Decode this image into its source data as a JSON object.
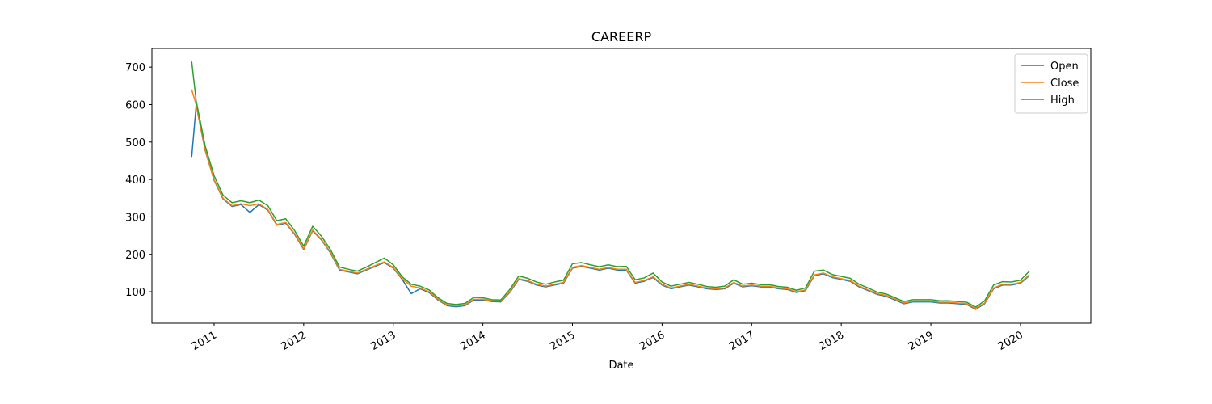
{
  "chart_data": {
    "type": "line",
    "title": "CAREERP",
    "xlabel": "Date",
    "x": [
      2010.75,
      2010.8,
      2010.9,
      2011.0,
      2011.1,
      2011.2,
      2011.3,
      2011.4,
      2011.5,
      2011.6,
      2011.7,
      2011.8,
      2011.9,
      2012.0,
      2012.1,
      2012.2,
      2012.3,
      2012.4,
      2012.5,
      2012.6,
      2012.7,
      2012.8,
      2012.9,
      2013.0,
      2013.1,
      2013.2,
      2013.3,
      2013.4,
      2013.5,
      2013.6,
      2013.7,
      2013.8,
      2013.9,
      2014.0,
      2014.1,
      2014.2,
      2014.3,
      2014.4,
      2014.5,
      2014.6,
      2014.7,
      2014.8,
      2014.9,
      2015.0,
      2015.1,
      2015.2,
      2015.3,
      2015.4,
      2015.5,
      2015.6,
      2015.7,
      2015.8,
      2015.9,
      2016.0,
      2016.1,
      2016.2,
      2016.3,
      2016.4,
      2016.5,
      2016.6,
      2016.7,
      2016.8,
      2016.9,
      2017.0,
      2017.1,
      2017.2,
      2017.3,
      2017.4,
      2017.5,
      2017.6,
      2017.7,
      2017.8,
      2017.9,
      2018.0,
      2018.1,
      2018.2,
      2018.3,
      2018.4,
      2018.5,
      2018.6,
      2018.7,
      2018.8,
      2018.9,
      2019.0,
      2019.1,
      2019.2,
      2019.3,
      2019.4,
      2019.5,
      2019.6,
      2019.7,
      2019.8,
      2019.9,
      2020.0,
      2020.1
    ],
    "series": [
      {
        "name": "Open",
        "color": "#1f77b4",
        "values": [
          460,
          598,
          478,
          398,
          348,
          328,
          333,
          312,
          333,
          318,
          278,
          283,
          253,
          213,
          263,
          238,
          203,
          158,
          153,
          148,
          158,
          168,
          178,
          163,
          133,
          95,
          108,
          98,
          78,
          63,
          60,
          63,
          78,
          78,
          74,
          73,
          98,
          133,
          128,
          118,
          113,
          118,
          123,
          163,
          168,
          163,
          158,
          163,
          158,
          158,
          123,
          128,
          138,
          118,
          108,
          113,
          118,
          113,
          108,
          106,
          108,
          123,
          113,
          116,
          113,
          113,
          108,
          106,
          98,
          103,
          143,
          148,
          138,
          133,
          128,
          113,
          103,
          93,
          88,
          78,
          68,
          73,
          73,
          73,
          70,
          70,
          68,
          66,
          53,
          68,
          108,
          118,
          118,
          123,
          143
        ]
      },
      {
        "name": "Close",
        "color": "#ff7f0e",
        "values": [
          640,
          600,
          480,
          400,
          350,
          330,
          335,
          330,
          335,
          320,
          280,
          285,
          255,
          215,
          265,
          240,
          205,
          160,
          155,
          150,
          160,
          170,
          180,
          165,
          135,
          115,
          110,
          100,
          80,
          65,
          62,
          65,
          80,
          80,
          76,
          75,
          100,
          135,
          130,
          120,
          115,
          120,
          125,
          165,
          170,
          165,
          160,
          165,
          160,
          160,
          125,
          130,
          140,
          120,
          110,
          115,
          120,
          115,
          110,
          108,
          110,
          125,
          115,
          118,
          115,
          115,
          110,
          108,
          100,
          105,
          145,
          150,
          140,
          135,
          130,
          115,
          105,
          95,
          90,
          80,
          70,
          75,
          75,
          75,
          72,
          72,
          70,
          68,
          55,
          70,
          110,
          120,
          120,
          125,
          145
        ]
      },
      {
        "name": "High",
        "color": "#2ca02c",
        "values": [
          715,
          610,
          490,
          410,
          358,
          338,
          343,
          338,
          345,
          330,
          290,
          295,
          263,
          222,
          275,
          248,
          212,
          166,
          160,
          155,
          166,
          178,
          190,
          172,
          140,
          120,
          115,
          105,
          84,
          69,
          66,
          69,
          85,
          84,
          79,
          78,
          106,
          142,
          136,
          126,
          120,
          126,
          131,
          175,
          178,
          172,
          167,
          172,
          167,
          168,
          132,
          137,
          150,
          126,
          115,
          120,
          125,
          120,
          114,
          112,
          115,
          132,
          120,
          123,
          119,
          119,
          114,
          112,
          104,
          110,
          155,
          158,
          146,
          141,
          136,
          120,
          110,
          99,
          94,
          84,
          74,
          79,
          79,
          79,
          76,
          76,
          74,
          72,
          59,
          76,
          118,
          127,
          126,
          131,
          155
        ]
      }
    ],
    "xlim": [
      2010.306,
      2020.785
    ],
    "xticks": [
      2011,
      2012,
      2013,
      2014,
      2015,
      2016,
      2017,
      2018,
      2019,
      2020
    ],
    "ylim": [
      16,
      750
    ],
    "yticks": [
      100,
      200,
      300,
      400,
      500,
      600,
      700
    ],
    "legend": "upper right"
  }
}
